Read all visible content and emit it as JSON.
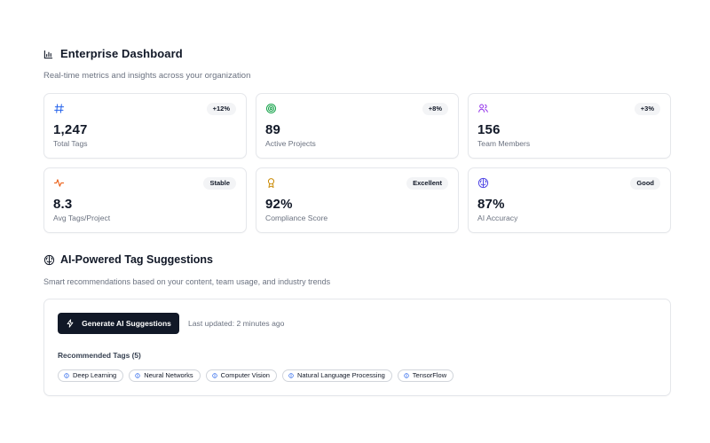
{
  "header": {
    "title": "Enterprise Dashboard",
    "subtitle": "Real-time metrics and insights across your organization",
    "icon": "bar-chart-icon"
  },
  "metrics": [
    {
      "value": "1,247",
      "label": "Total Tags",
      "badge": "+12%",
      "icon": "hash-icon",
      "color": "#2563eb"
    },
    {
      "value": "89",
      "label": "Active Projects",
      "badge": "+8%",
      "icon": "target-icon",
      "color": "#16a34a"
    },
    {
      "value": "156",
      "label": "Team Members",
      "badge": "+3%",
      "icon": "users-icon",
      "color": "#9333ea"
    },
    {
      "value": "8.3",
      "label": "Avg Tags/Project",
      "badge": "Stable",
      "icon": "activity-icon",
      "color": "#ea580c"
    },
    {
      "value": "92%",
      "label": "Compliance Score",
      "badge": "Excellent",
      "icon": "award-icon",
      "color": "#ca8a04"
    },
    {
      "value": "87%",
      "label": "AI Accuracy",
      "badge": "Good",
      "icon": "brain-icon",
      "color": "#4f46e5"
    }
  ],
  "ai_section": {
    "title": "AI-Powered Tag Suggestions",
    "subtitle": "Smart recommendations based on your content, team usage, and industry trends",
    "icon": "brain-icon",
    "button_label": "Generate AI Suggestions",
    "button_icon": "lightning-icon",
    "last_updated": "Last updated: 2 minutes ago",
    "recommended_title": "Recommended Tags (5)",
    "tags": [
      "Deep Learning",
      "Neural Networks",
      "Computer Vision",
      "Natural Language Processing",
      "TensorFlow"
    ],
    "tag_icon": "brain-icon",
    "tag_icon_color": "#2563eb"
  }
}
